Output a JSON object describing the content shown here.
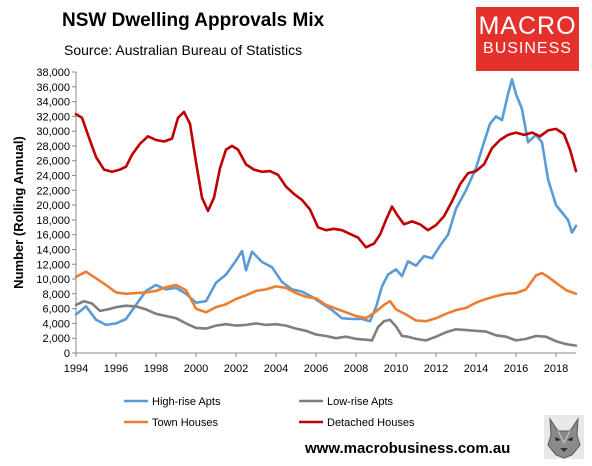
{
  "header": {
    "title": "NSW Dwelling Approvals Mix",
    "subtitle": "Source: Australian Bureau of Statistics"
  },
  "logo": {
    "line1": "MACRO",
    "line2": "BUSINESS",
    "color": "#e5312b"
  },
  "footer": {
    "website": "www.macrobusiness.com.au"
  },
  "chart_data": {
    "type": "line",
    "ylabel": "Number (Rolling Annual)",
    "ylim": [
      0,
      38000
    ],
    "ytick_step": 2000,
    "xlim": [
      1994,
      2019
    ],
    "xtick_labels": [
      "1994",
      "1996",
      "1998",
      "2000",
      "2002",
      "2004",
      "2006",
      "2008",
      "2010",
      "2012",
      "2014",
      "2016",
      "2018"
    ],
    "grid": false,
    "legend_position": "bottom",
    "series": [
      {
        "name": "High-rise Apts",
        "color": "#5b9bd5",
        "points": [
          [
            1994.0,
            5200
          ],
          [
            1994.5,
            6300
          ],
          [
            1995.0,
            4500
          ],
          [
            1995.5,
            3800
          ],
          [
            1996.0,
            4000
          ],
          [
            1996.5,
            4600
          ],
          [
            1997.0,
            6500
          ],
          [
            1997.5,
            8400
          ],
          [
            1998.0,
            9200
          ],
          [
            1998.5,
            8600
          ],
          [
            1999.0,
            8800
          ],
          [
            1999.5,
            8000
          ],
          [
            2000.0,
            6800
          ],
          [
            2000.5,
            7000
          ],
          [
            2001.0,
            9500
          ],
          [
            2001.5,
            10600
          ],
          [
            2002.0,
            12500
          ],
          [
            2002.3,
            13800
          ],
          [
            2002.5,
            11200
          ],
          [
            2002.8,
            13700
          ],
          [
            2003.3,
            12300
          ],
          [
            2003.8,
            11600
          ],
          [
            2004.3,
            9600
          ],
          [
            2004.8,
            8600
          ],
          [
            2005.3,
            8300
          ],
          [
            2005.8,
            7600
          ],
          [
            2006.3,
            6700
          ],
          [
            2006.8,
            5800
          ],
          [
            2007.3,
            4700
          ],
          [
            2007.8,
            4600
          ],
          [
            2008.3,
            4600
          ],
          [
            2008.7,
            4300
          ],
          [
            2009.0,
            6200
          ],
          [
            2009.3,
            9000
          ],
          [
            2009.6,
            10600
          ],
          [
            2010.0,
            11300
          ],
          [
            2010.3,
            10400
          ],
          [
            2010.6,
            12400
          ],
          [
            2011.0,
            11800
          ],
          [
            2011.4,
            13100
          ],
          [
            2011.8,
            12800
          ],
          [
            2012.2,
            14500
          ],
          [
            2012.6,
            16000
          ],
          [
            2013.0,
            19500
          ],
          [
            2013.5,
            22000
          ],
          [
            2014.0,
            25000
          ],
          [
            2014.4,
            28500
          ],
          [
            2014.7,
            31000
          ],
          [
            2015.0,
            32000
          ],
          [
            2015.3,
            31500
          ],
          [
            2015.6,
            35000
          ],
          [
            2015.8,
            37000
          ],
          [
            2016.0,
            35000
          ],
          [
            2016.3,
            33000
          ],
          [
            2016.6,
            28500
          ],
          [
            2017.0,
            29500
          ],
          [
            2017.3,
            28500
          ],
          [
            2017.6,
            23500
          ],
          [
            2018.0,
            20000
          ],
          [
            2018.3,
            19000
          ],
          [
            2018.6,
            18000
          ],
          [
            2018.8,
            16300
          ],
          [
            2019.0,
            17200
          ]
        ]
      },
      {
        "name": "Low-rise Apts",
        "color": "#7f7f7f",
        "points": [
          [
            1994.0,
            6500
          ],
          [
            1994.4,
            7000
          ],
          [
            1994.8,
            6700
          ],
          [
            1995.2,
            5700
          ],
          [
            1995.6,
            5900
          ],
          [
            1996.0,
            6200
          ],
          [
            1996.5,
            6400
          ],
          [
            1997.0,
            6300
          ],
          [
            1997.5,
            5900
          ],
          [
            1998.0,
            5300
          ],
          [
            1998.5,
            5000
          ],
          [
            1999.0,
            4700
          ],
          [
            1999.5,
            4000
          ],
          [
            2000.0,
            3400
          ],
          [
            2000.5,
            3300
          ],
          [
            2001.0,
            3700
          ],
          [
            2001.5,
            3900
          ],
          [
            2002.0,
            3700
          ],
          [
            2002.5,
            3800
          ],
          [
            2003.0,
            4000
          ],
          [
            2003.5,
            3800
          ],
          [
            2004.0,
            3900
          ],
          [
            2004.5,
            3700
          ],
          [
            2005.0,
            3300
          ],
          [
            2005.5,
            3000
          ],
          [
            2006.0,
            2500
          ],
          [
            2006.5,
            2300
          ],
          [
            2007.0,
            2000
          ],
          [
            2007.5,
            2200
          ],
          [
            2008.0,
            1900
          ],
          [
            2008.5,
            1800
          ],
          [
            2008.8,
            1700
          ],
          [
            2009.1,
            3500
          ],
          [
            2009.4,
            4300
          ],
          [
            2009.7,
            4500
          ],
          [
            2010.0,
            3600
          ],
          [
            2010.3,
            2300
          ],
          [
            2010.6,
            2200
          ],
          [
            2011.0,
            1900
          ],
          [
            2011.5,
            1700
          ],
          [
            2012.0,
            2200
          ],
          [
            2012.5,
            2800
          ],
          [
            2013.0,
            3200
          ],
          [
            2013.5,
            3100
          ],
          [
            2014.0,
            3000
          ],
          [
            2014.5,
            2900
          ],
          [
            2015.0,
            2400
          ],
          [
            2015.5,
            2200
          ],
          [
            2016.0,
            1700
          ],
          [
            2016.5,
            1900
          ],
          [
            2017.0,
            2300
          ],
          [
            2017.5,
            2200
          ],
          [
            2018.0,
            1600
          ],
          [
            2018.5,
            1200
          ],
          [
            2019.0,
            1000
          ]
        ]
      },
      {
        "name": "Town Houses",
        "color": "#ed7d31",
        "points": [
          [
            1994.0,
            10300
          ],
          [
            1994.5,
            11000
          ],
          [
            1995.0,
            10100
          ],
          [
            1995.5,
            9200
          ],
          [
            1996.0,
            8200
          ],
          [
            1996.5,
            8000
          ],
          [
            1997.0,
            8100
          ],
          [
            1997.5,
            8200
          ],
          [
            1998.0,
            8400
          ],
          [
            1998.5,
            8900
          ],
          [
            1999.0,
            9200
          ],
          [
            1999.5,
            8500
          ],
          [
            2000.0,
            6000
          ],
          [
            2000.5,
            5500
          ],
          [
            2001.0,
            6200
          ],
          [
            2001.5,
            6600
          ],
          [
            2002.0,
            7300
          ],
          [
            2002.5,
            7800
          ],
          [
            2003.0,
            8400
          ],
          [
            2003.5,
            8600
          ],
          [
            2004.0,
            9000
          ],
          [
            2004.5,
            8800
          ],
          [
            2005.0,
            8100
          ],
          [
            2005.5,
            7600
          ],
          [
            2006.0,
            7400
          ],
          [
            2006.5,
            6500
          ],
          [
            2007.0,
            6000
          ],
          [
            2007.5,
            5500
          ],
          [
            2008.0,
            5000
          ],
          [
            2008.5,
            4700
          ],
          [
            2009.0,
            5600
          ],
          [
            2009.4,
            6500
          ],
          [
            2009.7,
            7000
          ],
          [
            2010.0,
            5900
          ],
          [
            2010.5,
            5200
          ],
          [
            2011.0,
            4400
          ],
          [
            2011.5,
            4300
          ],
          [
            2012.0,
            4700
          ],
          [
            2012.5,
            5300
          ],
          [
            2013.0,
            5800
          ],
          [
            2013.5,
            6100
          ],
          [
            2014.0,
            6800
          ],
          [
            2014.5,
            7300
          ],
          [
            2015.0,
            7700
          ],
          [
            2015.5,
            8000
          ],
          [
            2016.0,
            8100
          ],
          [
            2016.5,
            8600
          ],
          [
            2017.0,
            10500
          ],
          [
            2017.3,
            10800
          ],
          [
            2017.6,
            10300
          ],
          [
            2018.0,
            9500
          ],
          [
            2018.5,
            8500
          ],
          [
            2019.0,
            8000
          ]
        ]
      },
      {
        "name": "Detached Houses",
        "color": "#c00000",
        "points": [
          [
            1994.0,
            32300
          ],
          [
            1994.3,
            31800
          ],
          [
            1994.6,
            29500
          ],
          [
            1995.0,
            26500
          ],
          [
            1995.4,
            24800
          ],
          [
            1995.8,
            24500
          ],
          [
            1996.2,
            24800
          ],
          [
            1996.5,
            25200
          ],
          [
            1996.8,
            26800
          ],
          [
            1997.2,
            28300
          ],
          [
            1997.6,
            29300
          ],
          [
            1998.0,
            28800
          ],
          [
            1998.4,
            28600
          ],
          [
            1998.8,
            29000
          ],
          [
            1999.1,
            31800
          ],
          [
            1999.4,
            32600
          ],
          [
            1999.7,
            31000
          ],
          [
            2000.0,
            25800
          ],
          [
            2000.3,
            21000
          ],
          [
            2000.6,
            19200
          ],
          [
            2000.9,
            21000
          ],
          [
            2001.2,
            25000
          ],
          [
            2001.5,
            27500
          ],
          [
            2001.8,
            28000
          ],
          [
            2002.1,
            27500
          ],
          [
            2002.5,
            25500
          ],
          [
            2002.9,
            24800
          ],
          [
            2003.3,
            24500
          ],
          [
            2003.7,
            24600
          ],
          [
            2004.1,
            24100
          ],
          [
            2004.5,
            22500
          ],
          [
            2004.9,
            21500
          ],
          [
            2005.3,
            20700
          ],
          [
            2005.7,
            19400
          ],
          [
            2006.1,
            17000
          ],
          [
            2006.5,
            16600
          ],
          [
            2006.9,
            16800
          ],
          [
            2007.3,
            16600
          ],
          [
            2007.7,
            16100
          ],
          [
            2008.1,
            15600
          ],
          [
            2008.5,
            14300
          ],
          [
            2008.9,
            14800
          ],
          [
            2009.2,
            16000
          ],
          [
            2009.5,
            18000
          ],
          [
            2009.8,
            19800
          ],
          [
            2010.1,
            18500
          ],
          [
            2010.4,
            17400
          ],
          [
            2010.8,
            17800
          ],
          [
            2011.2,
            17400
          ],
          [
            2011.6,
            16600
          ],
          [
            2012.0,
            17300
          ],
          [
            2012.4,
            18500
          ],
          [
            2012.8,
            20500
          ],
          [
            2013.2,
            22800
          ],
          [
            2013.6,
            24300
          ],
          [
            2014.0,
            24600
          ],
          [
            2014.4,
            25500
          ],
          [
            2014.8,
            27700
          ],
          [
            2015.2,
            28800
          ],
          [
            2015.6,
            29500
          ],
          [
            2016.0,
            29800
          ],
          [
            2016.4,
            29500
          ],
          [
            2016.8,
            29800
          ],
          [
            2017.2,
            29300
          ],
          [
            2017.6,
            30100
          ],
          [
            2018.0,
            30300
          ],
          [
            2018.4,
            29600
          ],
          [
            2018.7,
            27500
          ],
          [
            2019.0,
            24600
          ]
        ]
      }
    ]
  }
}
